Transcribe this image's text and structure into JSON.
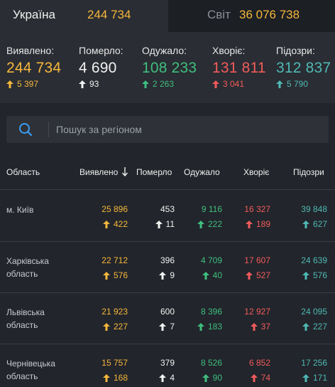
{
  "tabs": {
    "ukraine": {
      "name": "Україна",
      "value": "244 734"
    },
    "world": {
      "name": "Світ",
      "value": "36 076 738"
    }
  },
  "summary": {
    "detected": {
      "label": "Виявлено:",
      "value": "244 734",
      "delta": "5 397"
    },
    "died": {
      "label": "Померло:",
      "value": "4 690",
      "delta": "93"
    },
    "recovered": {
      "label": "Одужало:",
      "value": "108 233",
      "delta": "2 263"
    },
    "sick": {
      "label": "Хворіє:",
      "value": "131 811",
      "delta": "3 041"
    },
    "suspected": {
      "label": "Підозри:",
      "value": "312 837",
      "delta": "5 790"
    }
  },
  "search": {
    "placeholder": "Пошук за регіоном"
  },
  "table": {
    "headers": {
      "region": "Область",
      "detected": "Виявлено",
      "died": "Померло",
      "recovered": "Одужало",
      "sick": "Хворіє",
      "suspected": "Підозри"
    },
    "rows": [
      {
        "region": "м. Київ",
        "detected": "25 896",
        "detected_d": "422",
        "died": "453",
        "died_d": "11",
        "recovered": "9 116",
        "recovered_d": "222",
        "sick": "16 327",
        "sick_d": "189",
        "suspected": "39 848",
        "suspected_d": "627"
      },
      {
        "region": "Харківська область",
        "detected": "22 712",
        "detected_d": "576",
        "died": "396",
        "died_d": "9",
        "recovered": "4 709",
        "recovered_d": "40",
        "sick": "17 607",
        "sick_d": "527",
        "suspected": "24 639",
        "suspected_d": "576"
      },
      {
        "region": "Львівська область",
        "detected": "21 923",
        "detected_d": "227",
        "died": "600",
        "died_d": "7",
        "recovered": "8 396",
        "recovered_d": "183",
        "sick": "12 927",
        "sick_d": "37",
        "suspected": "24 095",
        "suspected_d": "227"
      },
      {
        "region": "Чернівецька область",
        "detected": "15 757",
        "detected_d": "168",
        "died": "379",
        "died_d": "4",
        "recovered": "8 526",
        "recovered_d": "90",
        "sick": "6 852",
        "sick_d": "74",
        "suspected": "17 256",
        "suspected_d": "171"
      }
    ]
  },
  "colors": {
    "detected": "#f6b73c",
    "died": "#f2f2f2",
    "recovered": "#3fbf7f",
    "sick": "#f25b5b",
    "suspected": "#4fb8b4"
  },
  "icons": {
    "search": "search-icon",
    "increase": "arrow-up-icon",
    "sort": "sort-down-arrow-icon"
  }
}
